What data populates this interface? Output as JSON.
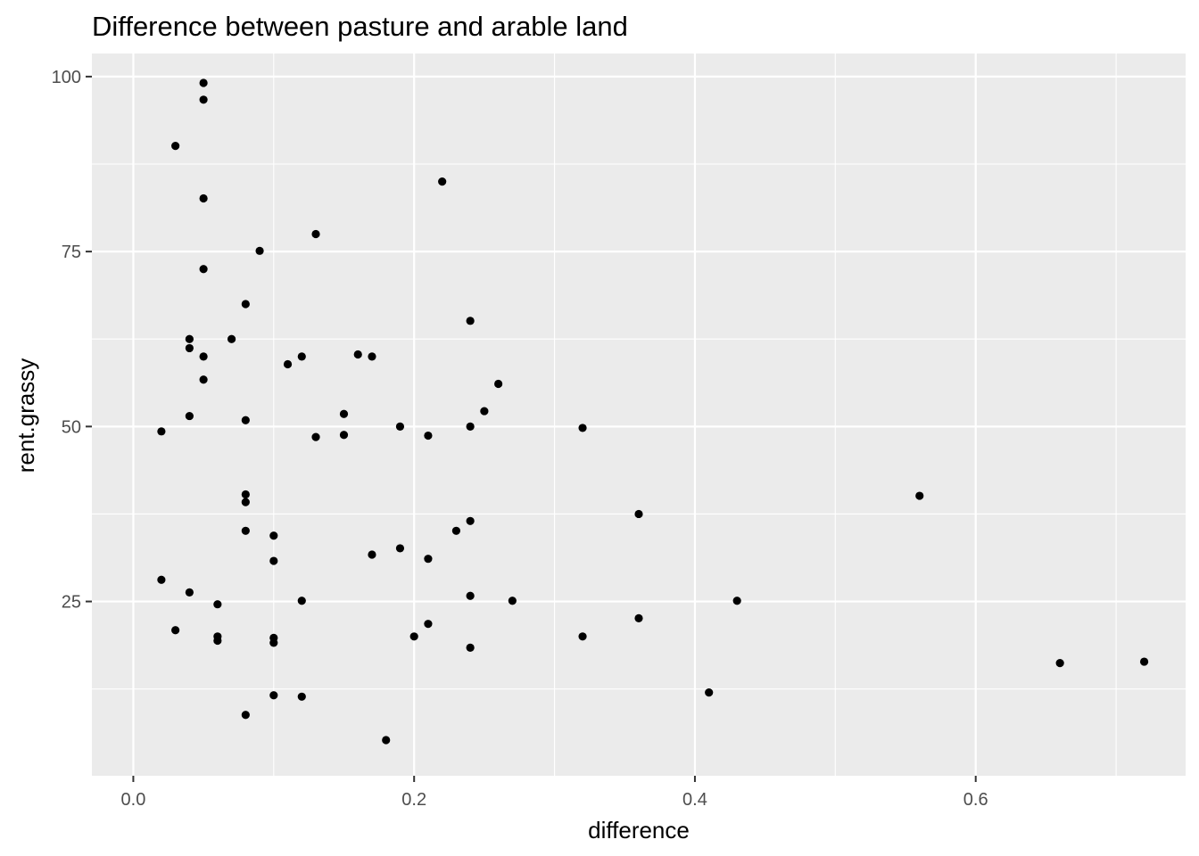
{
  "chart_data": {
    "type": "scatter",
    "title": "Difference between pasture and arable land",
    "xlabel": "difference",
    "ylabel": "rent.grassy",
    "xlim": [
      -0.0295,
      0.7495
    ],
    "ylim": [
      0.1,
      103.3
    ],
    "x_ticks": [
      0.0,
      0.2,
      0.4,
      0.6
    ],
    "x_tick_labels": [
      "0.0",
      "0.2",
      "0.4",
      "0.6"
    ],
    "y_ticks": [
      25,
      50,
      75,
      100
    ],
    "y_tick_labels": [
      "25",
      "50",
      "75",
      "100"
    ],
    "grid": true,
    "colors": {
      "panel": "#ebebeb",
      "grid": "#ffffff",
      "point": "#000000",
      "tick": "#4d4d4d"
    },
    "points": [
      {
        "x": 0.05,
        "y": 99.1
      },
      {
        "x": 0.05,
        "y": 96.7
      },
      {
        "x": 0.03,
        "y": 90.1
      },
      {
        "x": 0.05,
        "y": 82.6
      },
      {
        "x": 0.05,
        "y": 72.5
      },
      {
        "x": 0.09,
        "y": 75.1
      },
      {
        "x": 0.13,
        "y": 77.5
      },
      {
        "x": 0.22,
        "y": 85.0
      },
      {
        "x": 0.08,
        "y": 67.5
      },
      {
        "x": 0.04,
        "y": 62.5
      },
      {
        "x": 0.07,
        "y": 62.5
      },
      {
        "x": 0.04,
        "y": 61.2
      },
      {
        "x": 0.05,
        "y": 60.0
      },
      {
        "x": 0.05,
        "y": 56.7
      },
      {
        "x": 0.11,
        "y": 58.9
      },
      {
        "x": 0.12,
        "y": 60.0
      },
      {
        "x": 0.16,
        "y": 60.3
      },
      {
        "x": 0.17,
        "y": 60.0
      },
      {
        "x": 0.24,
        "y": 65.1
      },
      {
        "x": 0.26,
        "y": 56.1
      },
      {
        "x": 0.04,
        "y": 51.5
      },
      {
        "x": 0.08,
        "y": 50.9
      },
      {
        "x": 0.02,
        "y": 49.3
      },
      {
        "x": 0.15,
        "y": 51.8
      },
      {
        "x": 0.13,
        "y": 48.5
      },
      {
        "x": 0.15,
        "y": 48.8
      },
      {
        "x": 0.19,
        "y": 50.0
      },
      {
        "x": 0.21,
        "y": 48.7
      },
      {
        "x": 0.24,
        "y": 50.0
      },
      {
        "x": 0.25,
        "y": 52.2
      },
      {
        "x": 0.32,
        "y": 49.8
      },
      {
        "x": 0.56,
        "y": 40.1
      },
      {
        "x": 0.08,
        "y": 40.3
      },
      {
        "x": 0.08,
        "y": 39.2
      },
      {
        "x": 0.36,
        "y": 37.5
      },
      {
        "x": 0.24,
        "y": 36.5
      },
      {
        "x": 0.23,
        "y": 35.1
      },
      {
        "x": 0.08,
        "y": 35.1
      },
      {
        "x": 0.1,
        "y": 34.4
      },
      {
        "x": 0.19,
        "y": 32.6
      },
      {
        "x": 0.17,
        "y": 31.7
      },
      {
        "x": 0.21,
        "y": 31.1
      },
      {
        "x": 0.1,
        "y": 30.8
      },
      {
        "x": 0.02,
        "y": 28.1
      },
      {
        "x": 0.04,
        "y": 26.3
      },
      {
        "x": 0.24,
        "y": 25.8
      },
      {
        "x": 0.12,
        "y": 25.1
      },
      {
        "x": 0.27,
        "y": 25.1
      },
      {
        "x": 0.43,
        "y": 25.1
      },
      {
        "x": 0.06,
        "y": 24.6
      },
      {
        "x": 0.36,
        "y": 22.6
      },
      {
        "x": 0.21,
        "y": 21.8
      },
      {
        "x": 0.03,
        "y": 20.9
      },
      {
        "x": 0.06,
        "y": 20.0
      },
      {
        "x": 0.06,
        "y": 19.4
      },
      {
        "x": 0.1,
        "y": 19.8
      },
      {
        "x": 0.1,
        "y": 19.1
      },
      {
        "x": 0.2,
        "y": 20.0
      },
      {
        "x": 0.32,
        "y": 20.0
      },
      {
        "x": 0.24,
        "y": 18.4
      },
      {
        "x": 0.66,
        "y": 16.2
      },
      {
        "x": 0.72,
        "y": 16.4
      },
      {
        "x": 0.41,
        "y": 12.0
      },
      {
        "x": 0.1,
        "y": 11.6
      },
      {
        "x": 0.12,
        "y": 11.4
      },
      {
        "x": 0.08,
        "y": 8.8
      },
      {
        "x": 0.18,
        "y": 5.2
      }
    ]
  }
}
